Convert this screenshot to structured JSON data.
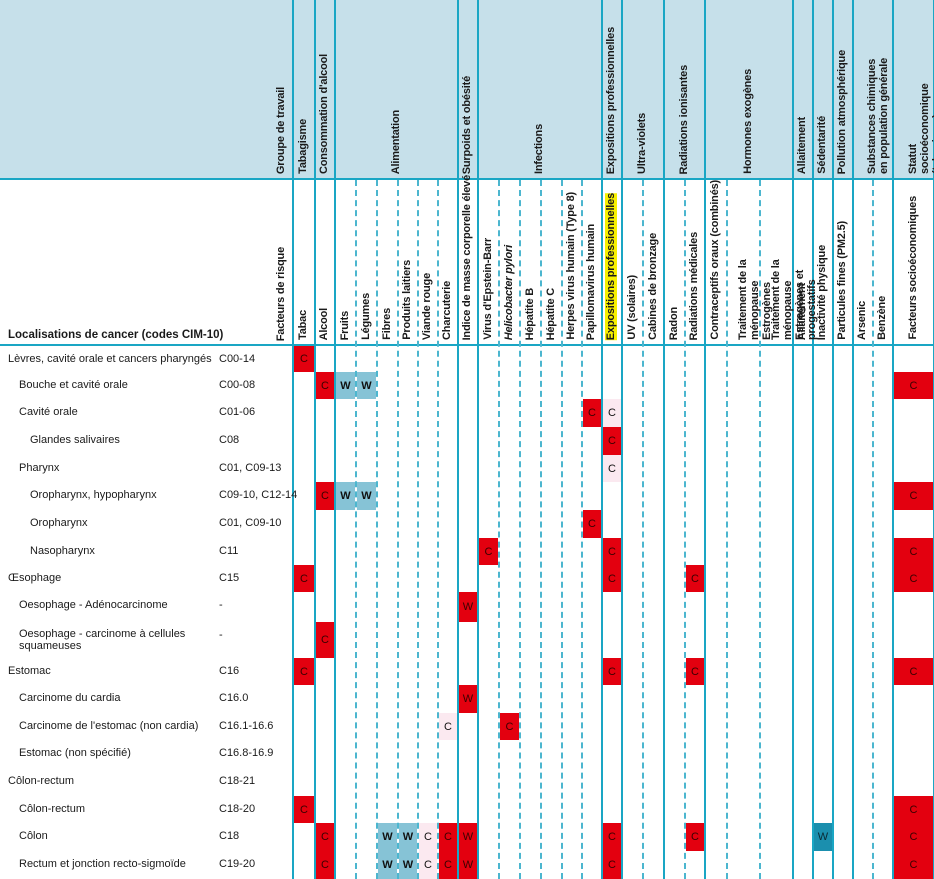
{
  "header": {
    "group_title": "Groupe de travail",
    "factor_title": "Facteurs de risque",
    "location_title": "Localisations de cancer (codes CIM-10)"
  },
  "groups": [
    {
      "label": "Tabagisme"
    },
    {
      "label": "Consommation d'alcool"
    },
    {
      "label": "Alimentation"
    },
    {
      "label": "Surpoids et obésité"
    },
    {
      "label": "Infections"
    },
    {
      "label": "Expositions professionnelles"
    },
    {
      "label": "Ultra-violets"
    },
    {
      "label": "Radiations ionisantes"
    },
    {
      "label": "Hormones exogènes"
    },
    {
      "label": "Allaitement"
    },
    {
      "label": "Sédentarité"
    },
    {
      "label": "Pollution atmosphérique"
    },
    {
      "label": "Substances chimiques en population générale"
    },
    {
      "label": "Statut socioéconomique (tabagisme)"
    }
  ],
  "factors": [
    "Tabac",
    "Alcool",
    "Fruits",
    "Légumes",
    "Fibres",
    "Produits laitiers",
    "Viande rouge",
    "Charcuterie",
    "Indice de masse corporelle élevé",
    "Virus d'Epstein-Barr",
    "Helicobacter pylori",
    "Hépatite B",
    "Hépatite C",
    "Herpes virus humain (Type 8)",
    "Papillomavirus humain",
    "Expositions professionnelles",
    "UV (solaires)",
    "Cabines de bronzage",
    "Radon",
    "Radiations médicales",
    "Contraceptifs oraux (combinés)",
    "Traitement de la ménopause Estrogènes",
    "Traitement de la ménopause Estrogènes et progestatifs",
    "Allaitement",
    "Inactivité physique",
    "Particules fines (PM2.5)",
    "Arsenic",
    "Benzène",
    "Facteurs socioéconomiques"
  ],
  "legend_codes": {
    "C": "C",
    "W": "W"
  },
  "rows": [
    {
      "label": "Lèvres, cavité orale et cancers pharyngés",
      "code": "C00-14"
    },
    {
      "label": "Bouche et cavité orale",
      "code": "C00-08"
    },
    {
      "label": "Cavité orale",
      "code": "C01-06"
    },
    {
      "label": "Glandes salivaires",
      "code": "C08"
    },
    {
      "label": "Pharynx",
      "code": "C01, C09-13"
    },
    {
      "label": "Oropharynx, hypopharynx",
      "code": "C09-10, C12-14"
    },
    {
      "label": "Oropharynx",
      "code": "C01, C09-10"
    },
    {
      "label": "Nasopharynx",
      "code": "C11"
    },
    {
      "label": "Œsophage",
      "code": "C15"
    },
    {
      "label": "Oesophage - Adénocarcinome",
      "code": "-"
    },
    {
      "label": "Oesophage - carcinome à cellules squameuses",
      "code": "-"
    },
    {
      "label": "Estomac",
      "code": "C16"
    },
    {
      "label": "Carcinome du cardia",
      "code": "C16.0"
    },
    {
      "label": "Carcinome de l'estomac (non cardia)",
      "code": "C16.1-16.6"
    },
    {
      "label": "Estomac (non spécifié)",
      "code": "C16.8-16.9"
    },
    {
      "label": "Côlon-rectum",
      "code": "C18-21"
    },
    {
      "label": "Côlon-rectum",
      "code": "C18-20"
    },
    {
      "label": "Côlon",
      "code": "C18"
    },
    {
      "label": "Rectum et jonction recto-sigmoïde",
      "code": "C19-20"
    }
  ],
  "cells": [
    {
      "row": 0,
      "factor": 0,
      "mark": "C",
      "style": "red"
    },
    {
      "row": 1,
      "factor": 1,
      "mark": "C",
      "style": "red"
    },
    {
      "row": 1,
      "factor": 2,
      "mark": "W",
      "style": "lblue"
    },
    {
      "row": 1,
      "factor": 3,
      "mark": "W",
      "style": "lblue"
    },
    {
      "row": 1,
      "factor": 28,
      "mark": "C",
      "style": "red"
    },
    {
      "row": 2,
      "factor": 14,
      "mark": "C",
      "style": "red"
    },
    {
      "row": 2,
      "factor": 15,
      "mark": "C",
      "style": "pink"
    },
    {
      "row": 3,
      "factor": 15,
      "mark": "C",
      "style": "red"
    },
    {
      "row": 4,
      "factor": 15,
      "mark": "C",
      "style": "pink"
    },
    {
      "row": 5,
      "factor": 1,
      "mark": "C",
      "style": "red"
    },
    {
      "row": 5,
      "factor": 2,
      "mark": "W",
      "style": "lblue"
    },
    {
      "row": 5,
      "factor": 3,
      "mark": "W",
      "style": "lblue"
    },
    {
      "row": 5,
      "factor": 28,
      "mark": "C",
      "style": "red"
    },
    {
      "row": 6,
      "factor": 14,
      "mark": "C",
      "style": "red"
    },
    {
      "row": 7,
      "factor": 9,
      "mark": "C",
      "style": "red"
    },
    {
      "row": 7,
      "factor": 15,
      "mark": "C",
      "style": "red"
    },
    {
      "row": 7,
      "factor": 28,
      "mark": "C",
      "style": "red"
    },
    {
      "row": 8,
      "factor": 0,
      "mark": "C",
      "style": "red"
    },
    {
      "row": 8,
      "factor": 15,
      "mark": "C",
      "style": "red"
    },
    {
      "row": 8,
      "factor": 19,
      "mark": "C",
      "style": "red"
    },
    {
      "row": 8,
      "factor": 28,
      "mark": "C",
      "style": "red"
    },
    {
      "row": 9,
      "factor": 8,
      "mark": "W",
      "style": "red"
    },
    {
      "row": 10,
      "factor": 1,
      "mark": "C",
      "style": "red"
    },
    {
      "row": 11,
      "factor": 0,
      "mark": "C",
      "style": "red"
    },
    {
      "row": 11,
      "factor": 15,
      "mark": "C",
      "style": "red"
    },
    {
      "row": 11,
      "factor": 19,
      "mark": "C",
      "style": "red"
    },
    {
      "row": 11,
      "factor": 28,
      "mark": "C",
      "style": "red"
    },
    {
      "row": 12,
      "factor": 8,
      "mark": "W",
      "style": "red"
    },
    {
      "row": 13,
      "factor": 7,
      "mark": "C",
      "style": "pink"
    },
    {
      "row": 13,
      "factor": 10,
      "mark": "C",
      "style": "red"
    },
    {
      "row": 16,
      "factor": 0,
      "mark": "C",
      "style": "red"
    },
    {
      "row": 16,
      "factor": 28,
      "mark": "C",
      "style": "red"
    },
    {
      "row": 17,
      "factor": 1,
      "mark": "C",
      "style": "red"
    },
    {
      "row": 17,
      "factor": 4,
      "mark": "W",
      "style": "lblue"
    },
    {
      "row": 17,
      "factor": 5,
      "mark": "W",
      "style": "lblue"
    },
    {
      "row": 17,
      "factor": 6,
      "mark": "C",
      "style": "pink"
    },
    {
      "row": 17,
      "factor": 7,
      "mark": "C",
      "style": "red"
    },
    {
      "row": 17,
      "factor": 8,
      "mark": "W",
      "style": "red"
    },
    {
      "row": 17,
      "factor": 15,
      "mark": "C",
      "style": "red"
    },
    {
      "row": 17,
      "factor": 19,
      "mark": "C",
      "style": "red"
    },
    {
      "row": 17,
      "factor": 24,
      "mark": "W",
      "style": "dteal"
    },
    {
      "row": 17,
      "factor": 28,
      "mark": "C",
      "style": "red"
    },
    {
      "row": 18,
      "factor": 1,
      "mark": "C",
      "style": "red"
    },
    {
      "row": 18,
      "factor": 4,
      "mark": "W",
      "style": "lblue"
    },
    {
      "row": 18,
      "factor": 5,
      "mark": "W",
      "style": "lblue"
    },
    {
      "row": 18,
      "factor": 6,
      "mark": "C",
      "style": "pink"
    },
    {
      "row": 18,
      "factor": 7,
      "mark": "C",
      "style": "red"
    },
    {
      "row": 18,
      "factor": 8,
      "mark": "W",
      "style": "red"
    },
    {
      "row": 18,
      "factor": 15,
      "mark": "C",
      "style": "red"
    },
    {
      "row": 18,
      "factor": 28,
      "mark": "C",
      "style": "red"
    }
  ]
}
